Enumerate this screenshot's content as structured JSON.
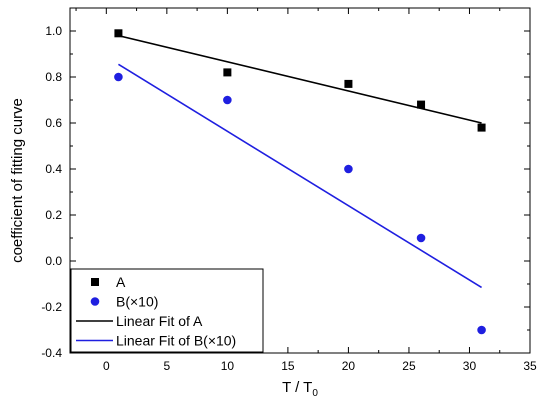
{
  "chart_data": {
    "type": "scatter",
    "xlabel": "T / T",
    "xlabel_sub": "0",
    "ylabel": "coefficient of fitting curve",
    "xlim": [
      -3,
      35
    ],
    "ylim": [
      -0.4,
      1.1
    ],
    "xticks": [
      0,
      5,
      10,
      15,
      20,
      25,
      30,
      35
    ],
    "yticks": [
      -0.4,
      -0.2,
      0.0,
      0.2,
      0.4,
      0.6,
      0.8,
      1.0
    ],
    "ytick_labels": [
      "-0.4",
      "-0.2",
      "0.0",
      "0.2",
      "0.4",
      "0.6",
      "0.8",
      "1.0"
    ],
    "grid": false,
    "legend_position": "bottom-left",
    "series": [
      {
        "name": "A",
        "marker": "square",
        "color": "#000000",
        "x": [
          1,
          10,
          20,
          26,
          31
        ],
        "y": [
          0.99,
          0.82,
          0.77,
          0.68,
          0.58
        ]
      },
      {
        "name": "B(×10)",
        "marker": "circle",
        "color": "#1f1fe0",
        "x": [
          1,
          10,
          20,
          26,
          31
        ],
        "y": [
          0.8,
          0.7,
          0.4,
          0.1,
          -0.3
        ]
      }
    ],
    "fits": [
      {
        "name": "Linear Fit of A",
        "color": "#000000",
        "x": [
          1,
          31
        ],
        "y": [
          0.98,
          0.6
        ]
      },
      {
        "name": "Linear Fit of B(×10)",
        "color": "#1f1fe0",
        "x": [
          1,
          31
        ],
        "y": [
          0.855,
          -0.115
        ]
      }
    ]
  }
}
